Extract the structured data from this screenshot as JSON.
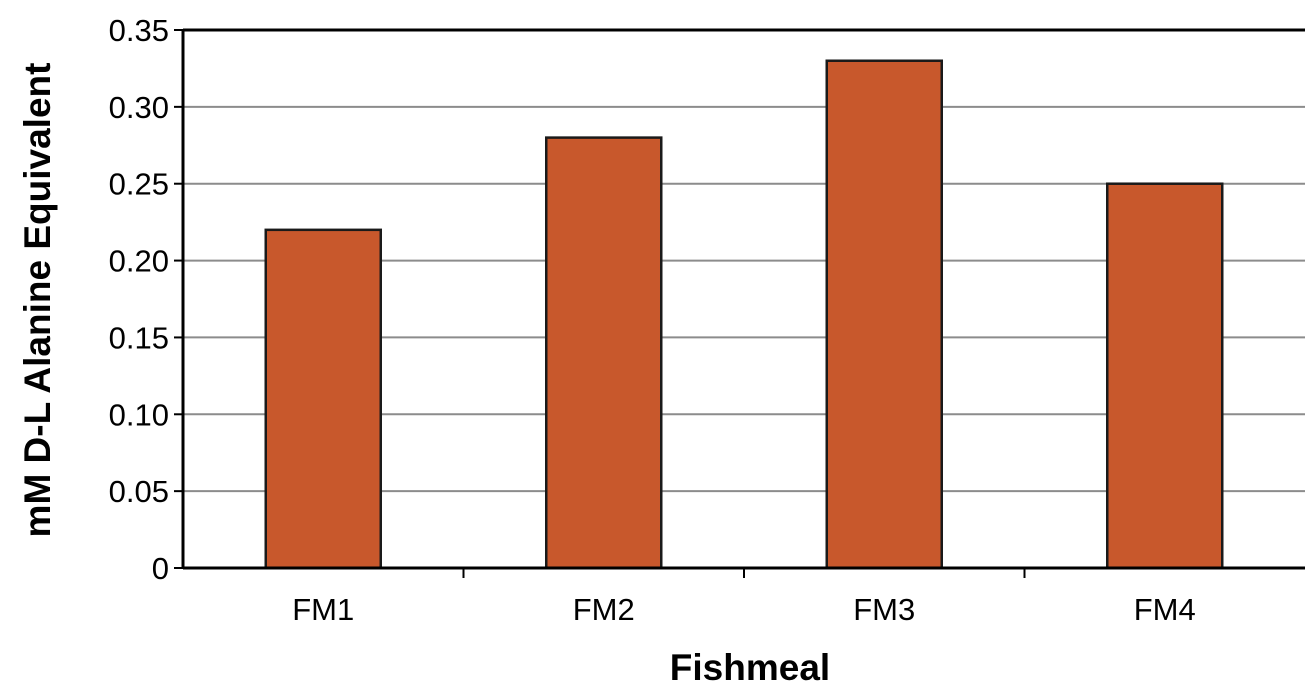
{
  "chart_data": {
    "type": "bar",
    "title": "",
    "xlabel": "Fishmeal",
    "ylabel": "mM D-L Alanine Equivalent",
    "categories": [
      "FM1",
      "FM2",
      "FM3",
      "FM4"
    ],
    "values": [
      0.22,
      0.28,
      0.33,
      0.25
    ],
    "ylim": [
      0,
      0.35
    ],
    "yticks": [
      {
        "value": 0,
        "label": "0"
      },
      {
        "value": 0.05,
        "label": "0.05"
      },
      {
        "value": 0.1,
        "label": "0.10"
      },
      {
        "value": 0.15,
        "label": "0.15"
      },
      {
        "value": 0.2,
        "label": "0.20"
      },
      {
        "value": 0.25,
        "label": "0.25"
      },
      {
        "value": 0.3,
        "label": "0.30"
      },
      {
        "value": 0.35,
        "label": "0.35"
      }
    ],
    "grid": true,
    "legend": "none",
    "bar_color": "#C8582C",
    "bar_edge_color": "#1a1a1a",
    "grid_color": "#8c8c8c"
  }
}
